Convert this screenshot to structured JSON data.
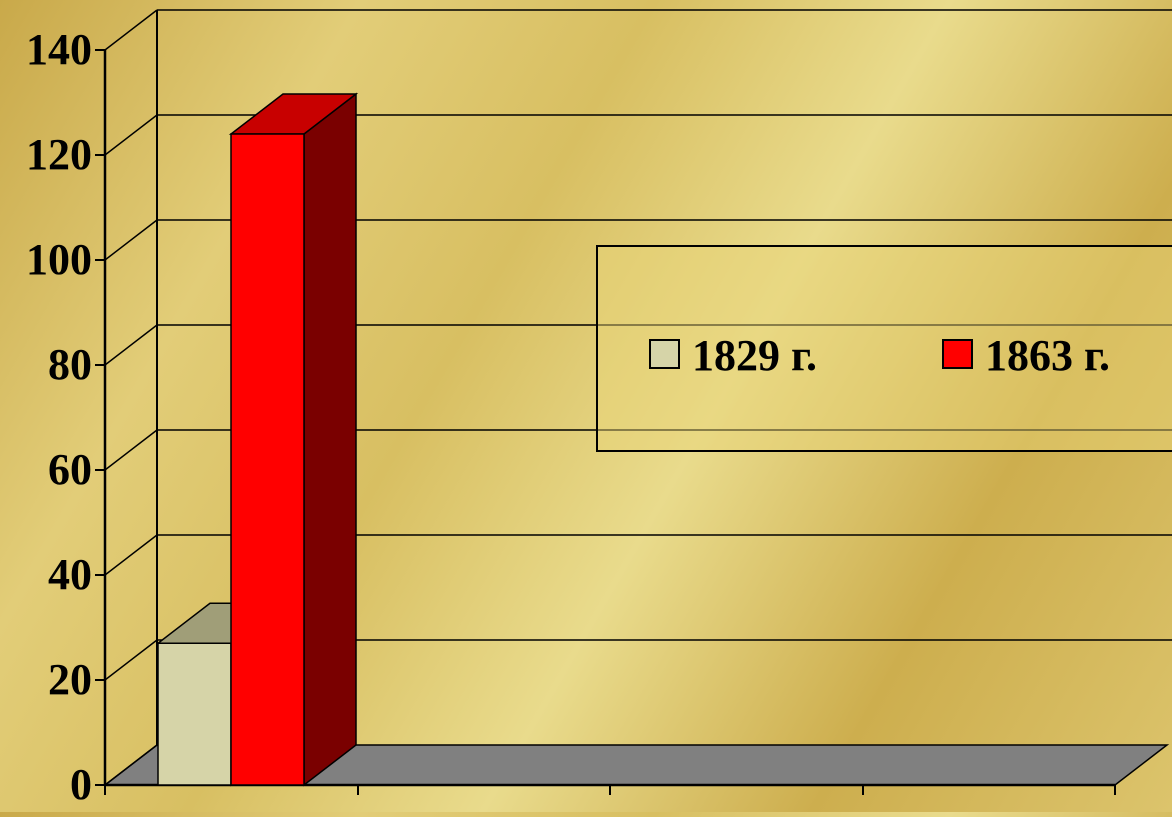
{
  "chart_data": {
    "type": "bar",
    "style": "3d-clustered-column",
    "categories": [
      ""
    ],
    "series": [
      {
        "name": "1829 г.",
        "values": [
          27
        ],
        "color": "#d6d4a8"
      },
      {
        "name": "1863 г.",
        "values": [
          124
        ],
        "color": "#ff0000"
      }
    ],
    "ylim": [
      0,
      140
    ],
    "yticks": [
      "0",
      "20",
      "40",
      "60",
      "80",
      "100",
      "120",
      "140"
    ],
    "grid": true,
    "legend_position": "right",
    "colors": {
      "floor": "#808080",
      "grid": "#000000",
      "red_side": "#7a0000",
      "red_top": "#c80000",
      "beige_top": "#a09e78"
    }
  }
}
